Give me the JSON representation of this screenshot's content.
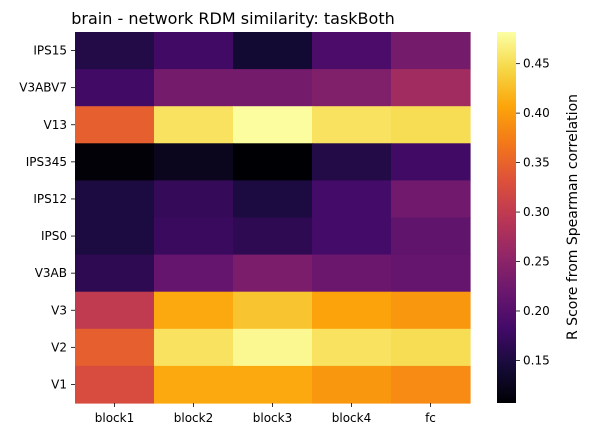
{
  "chart_data": {
    "type": "heatmap",
    "title": "brain - network RDM similarity: taskBoth",
    "x_labels": [
      "block1",
      "block2",
      "block3",
      "block4",
      "fc"
    ],
    "y_labels": [
      "IPS15",
      "V3ABV7",
      "V13",
      "IPS345",
      "IPS12",
      "IPS0",
      "V3AB",
      "V3",
      "V2",
      "V1"
    ],
    "values": [
      [
        0.155,
        0.18,
        0.14,
        0.19,
        0.23
      ],
      [
        0.18,
        0.23,
        0.23,
        0.24,
        0.27
      ],
      [
        0.345,
        0.455,
        0.48,
        0.455,
        0.45
      ],
      [
        0.11,
        0.125,
        0.105,
        0.155,
        0.18
      ],
      [
        0.15,
        0.17,
        0.15,
        0.185,
        0.225
      ],
      [
        0.15,
        0.175,
        0.165,
        0.185,
        0.21
      ],
      [
        0.165,
        0.215,
        0.235,
        0.22,
        0.215
      ],
      [
        0.3,
        0.41,
        0.43,
        0.405,
        0.395
      ],
      [
        0.345,
        0.455,
        0.475,
        0.455,
        0.45
      ],
      [
        0.325,
        0.41,
        0.41,
        0.395,
        0.385
      ]
    ],
    "colormap": "inferno",
    "vmin": 0.107,
    "vmax": 0.482,
    "colorbar": {
      "label": "R Score from Spearman correlation",
      "ticks": [
        0.15,
        0.2,
        0.25,
        0.3,
        0.35,
        0.4,
        0.45
      ],
      "tick_labels": [
        "0.15",
        "0.20",
        "0.25",
        "0.30",
        "0.35",
        "0.40",
        "0.45"
      ]
    }
  }
}
